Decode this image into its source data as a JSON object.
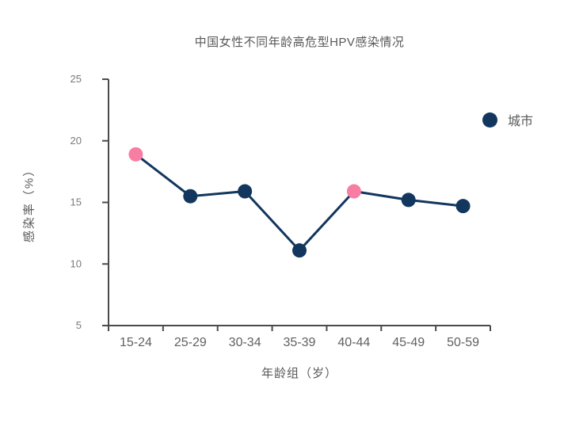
{
  "window": {
    "background": "#ffffff"
  },
  "colors": {
    "axis": "#4a4a4a",
    "y_tick_label": "#7a7a7a",
    "x_tick_label": "#606060",
    "text": "#595959"
  },
  "legend": {
    "label": "城市"
  },
  "chart_data": {
    "type": "line",
    "title": "中国女性不同年龄高危型HPV感染情况",
    "xlabel": "年龄组（岁）",
    "ylabel": "感染率（%）",
    "categories": [
      "15-24",
      "25-29",
      "30-34",
      "35-39",
      "40-44",
      "45-49",
      "50-59"
    ],
    "series": [
      {
        "name": "城市",
        "values": [
          18.9,
          15.5,
          15.9,
          11.1,
          15.9,
          15.2,
          14.7
        ],
        "color": "#12365E",
        "highlight_color": "#F87DA2",
        "highlighted_points": [
          0,
          4
        ]
      }
    ],
    "ylim": [
      5,
      25
    ],
    "yticks": [
      5,
      10,
      15,
      20,
      25
    ],
    "grid": false,
    "legend_position": "right",
    "marker": "circle",
    "marker_radius": 9,
    "line_width": 3
  }
}
